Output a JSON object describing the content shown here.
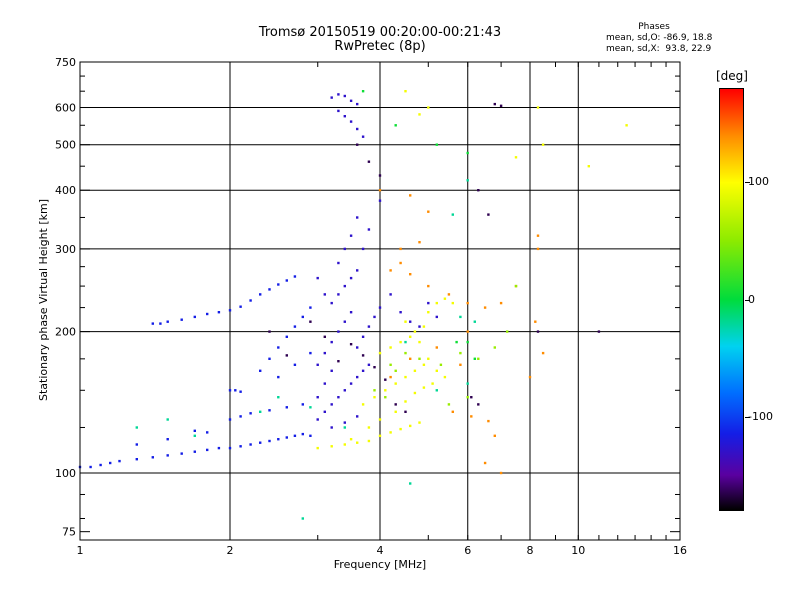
{
  "chart_data": {
    "type": "scatter",
    "title": "Tromsø 20150519 00:20:00-00:21:43",
    "subtitle": "RwPretec (8p)",
    "xlabel": "Frequency [MHz]",
    "ylabel": "Stationary phase Virtual Height [km]",
    "xscale": "log",
    "yscale": "log",
    "xlim": [
      1,
      16
    ],
    "ylim": [
      72,
      750
    ],
    "xticks": [
      {
        "value": 1,
        "label": "1"
      },
      {
        "value": 2,
        "label": "2"
      },
      {
        "value": 4,
        "label": "4"
      },
      {
        "value": 6,
        "label": "6"
      },
      {
        "value": 8,
        "label": "8"
      },
      {
        "value": 10,
        "label": "10"
      },
      {
        "value": 16,
        "label": "16"
      }
    ],
    "yticks": [
      {
        "value": 75,
        "label": "75"
      },
      {
        "value": 100,
        "label": "100"
      },
      {
        "value": 200,
        "label": "200"
      },
      {
        "value": 300,
        "label": "300"
      },
      {
        "value": 400,
        "label": "400"
      },
      {
        "value": 500,
        "label": "500"
      },
      {
        "value": 600,
        "label": "600"
      },
      {
        "value": 750,
        "label": "750"
      }
    ],
    "grid": true,
    "stats": {
      "heading": "Phases",
      "o_mode": "mean, sd,O: -86.9, 18.8",
      "x_mode": "mean, sd,X:  93.8, 22.9"
    },
    "colorbar": {
      "label": "[deg]",
      "range": [
        -180,
        180
      ],
      "ticks": [
        {
          "value": 100,
          "label": "100"
        },
        {
          "value": 0,
          "label": "0"
        },
        {
          "value": -100,
          "label": "-100"
        }
      ]
    },
    "series": [
      {
        "mode": "O",
        "phase_deg": -115,
        "points": [
          [
            1.0,
            103
          ],
          [
            1.05,
            103
          ],
          [
            1.1,
            104
          ],
          [
            1.15,
            105
          ],
          [
            1.2,
            106
          ],
          [
            1.3,
            107
          ],
          [
            1.4,
            108
          ],
          [
            1.5,
            109
          ],
          [
            1.6,
            110
          ],
          [
            1.7,
            111
          ],
          [
            1.8,
            112
          ],
          [
            1.9,
            113
          ],
          [
            2.0,
            113
          ],
          [
            2.1,
            114
          ],
          [
            2.2,
            115
          ],
          [
            2.3,
            116
          ],
          [
            2.4,
            117
          ],
          [
            2.5,
            118
          ],
          [
            2.6,
            119
          ],
          [
            2.7,
            120
          ],
          [
            2.8,
            121
          ],
          [
            2.9,
            120
          ],
          [
            1.4,
            208
          ],
          [
            1.45,
            208
          ],
          [
            1.5,
            210
          ],
          [
            1.6,
            212
          ],
          [
            1.7,
            215
          ],
          [
            1.8,
            218
          ],
          [
            1.9,
            220
          ],
          [
            2.0,
            222
          ],
          [
            2.1,
            226
          ],
          [
            2.2,
            233
          ],
          [
            2.3,
            240
          ],
          [
            2.4,
            246
          ],
          [
            2.5,
            252
          ],
          [
            2.6,
            257
          ],
          [
            2.7,
            262
          ],
          [
            2.0,
            150
          ],
          [
            2.05,
            150
          ],
          [
            2.1,
            149
          ],
          [
            2.0,
            130
          ],
          [
            2.1,
            132
          ],
          [
            2.2,
            134
          ],
          [
            2.4,
            136
          ],
          [
            2.6,
            138
          ],
          [
            2.8,
            140
          ],
          [
            2.3,
            165
          ],
          [
            2.4,
            175
          ],
          [
            2.5,
            185
          ],
          [
            2.6,
            195
          ],
          [
            2.7,
            205
          ],
          [
            2.5,
            160
          ],
          [
            2.7,
            170
          ],
          [
            2.9,
            180
          ],
          [
            2.8,
            215
          ],
          [
            2.9,
            225
          ],
          [
            1.7,
            123
          ],
          [
            1.8,
            122
          ],
          [
            1.3,
            115
          ],
          [
            1.5,
            118
          ]
        ]
      },
      {
        "mode": "O",
        "phase_deg": -128,
        "points": [
          [
            3.0,
            130
          ],
          [
            3.1,
            135
          ],
          [
            3.2,
            140
          ],
          [
            3.3,
            145
          ],
          [
            3.4,
            150
          ],
          [
            3.5,
            155
          ],
          [
            3.6,
            160
          ],
          [
            3.7,
            165
          ],
          [
            3.8,
            170
          ],
          [
            3.0,
            170
          ],
          [
            3.1,
            180
          ],
          [
            3.2,
            190
          ],
          [
            3.3,
            200
          ],
          [
            3.4,
            210
          ],
          [
            3.5,
            220
          ],
          [
            3.2,
            230
          ],
          [
            3.3,
            240
          ],
          [
            3.4,
            250
          ],
          [
            3.5,
            260
          ],
          [
            3.6,
            270
          ],
          [
            3.3,
            280
          ],
          [
            3.4,
            300
          ],
          [
            3.5,
            320
          ],
          [
            3.6,
            350
          ],
          [
            3.2,
            630
          ],
          [
            3.3,
            640
          ],
          [
            3.4,
            635
          ],
          [
            3.5,
            620
          ],
          [
            3.6,
            610
          ],
          [
            3.3,
            590
          ],
          [
            3.4,
            575
          ],
          [
            3.5,
            560
          ],
          [
            3.6,
            540
          ],
          [
            3.7,
            520
          ],
          [
            3.1,
            155
          ],
          [
            3.2,
            165
          ],
          [
            3.6,
            185
          ],
          [
            3.7,
            195
          ],
          [
            3.8,
            205
          ],
          [
            3.9,
            215
          ],
          [
            4.0,
            225
          ],
          [
            3.0,
            145
          ],
          [
            3.2,
            125
          ],
          [
            3.4,
            128
          ],
          [
            3.6,
            132
          ],
          [
            3.0,
            260
          ],
          [
            3.1,
            240
          ],
          [
            3.7,
            300
          ],
          [
            3.8,
            330
          ],
          [
            4.0,
            380
          ],
          [
            4.2,
            240
          ],
          [
            4.4,
            220
          ],
          [
            4.6,
            210
          ],
          [
            4.8,
            205
          ],
          [
            5.0,
            230
          ],
          [
            5.2,
            215
          ]
        ]
      },
      {
        "mode": "X",
        "phase_deg": 95,
        "points": [
          [
            3.0,
            113
          ],
          [
            3.2,
            114
          ],
          [
            3.4,
            115
          ],
          [
            3.6,
            116
          ],
          [
            3.8,
            117
          ],
          [
            4.0,
            120
          ],
          [
            4.2,
            122
          ],
          [
            4.4,
            124
          ],
          [
            4.6,
            126
          ],
          [
            4.8,
            128
          ],
          [
            3.7,
            140
          ],
          [
            3.9,
            145
          ],
          [
            4.1,
            150
          ],
          [
            4.3,
            155
          ],
          [
            4.5,
            160
          ],
          [
            4.7,
            165
          ],
          [
            4.9,
            170
          ],
          [
            4.0,
            180
          ],
          [
            4.2,
            185
          ],
          [
            4.4,
            190
          ],
          [
            4.6,
            195
          ],
          [
            4.8,
            190
          ],
          [
            5.0,
            175
          ],
          [
            5.2,
            165
          ],
          [
            5.4,
            160
          ],
          [
            5.0,
            220
          ],
          [
            5.2,
            230
          ],
          [
            5.4,
            235
          ],
          [
            5.6,
            230
          ],
          [
            4.5,
            210
          ],
          [
            4.7,
            200
          ],
          [
            4.9,
            205
          ],
          [
            4.3,
            135
          ],
          [
            4.5,
            142
          ],
          [
            4.7,
            148
          ],
          [
            4.9,
            152
          ],
          [
            5.1,
            155
          ],
          [
            3.8,
            125
          ],
          [
            4.0,
            130
          ],
          [
            3.5,
            118
          ],
          [
            8.3,
            600
          ],
          [
            8.5,
            500
          ],
          [
            7.5,
            470
          ],
          [
            10.5,
            450
          ],
          [
            12.5,
            550
          ],
          [
            4.5,
            650
          ],
          [
            5.0,
            600
          ],
          [
            4.8,
            580
          ]
        ]
      },
      {
        "mode": "X",
        "phase_deg": 140,
        "points": [
          [
            4.2,
            270
          ],
          [
            4.4,
            280
          ],
          [
            4.6,
            265
          ],
          [
            5.0,
            250
          ],
          [
            5.5,
            240
          ],
          [
            6.0,
            230
          ],
          [
            6.5,
            225
          ],
          [
            7.0,
            230
          ],
          [
            7.5,
            250
          ],
          [
            8.2,
            210
          ],
          [
            8.3,
            320
          ],
          [
            8.3,
            300
          ],
          [
            5.6,
            135
          ],
          [
            6.1,
            132
          ],
          [
            6.6,
            129
          ],
          [
            4.0,
            400
          ],
          [
            4.6,
            390
          ],
          [
            5.0,
            360
          ],
          [
            4.4,
            300
          ],
          [
            4.8,
            310
          ],
          [
            4.2,
            160
          ],
          [
            4.6,
            175
          ],
          [
            5.2,
            185
          ],
          [
            6.0,
            200
          ],
          [
            6.5,
            105
          ],
          [
            7.0,
            100
          ],
          [
            6.8,
            120
          ],
          [
            5.8,
            170
          ],
          [
            8.0,
            160
          ],
          [
            8.5,
            180
          ]
        ]
      },
      {
        "mode": "X",
        "phase_deg": 55,
        "points": [
          [
            4.2,
            170
          ],
          [
            4.5,
            180
          ],
          [
            4.8,
            175
          ],
          [
            5.3,
            170
          ],
          [
            5.8,
            180
          ],
          [
            6.3,
            175
          ],
          [
            6.8,
            185
          ],
          [
            7.5,
            250
          ],
          [
            5.5,
            140
          ],
          [
            6.0,
            145
          ],
          [
            3.9,
            150
          ],
          [
            4.1,
            145
          ],
          [
            4.3,
            165
          ],
          [
            7.2,
            200
          ]
        ]
      },
      {
        "mode": "X",
        "phase_deg": 5,
        "points": [
          [
            3.7,
            650
          ],
          [
            4.3,
            550
          ],
          [
            5.2,
            500
          ],
          [
            6.0,
            480
          ],
          [
            5.7,
            190
          ],
          [
            6.0,
            190
          ],
          [
            6.2,
            175
          ]
        ]
      },
      {
        "mode": "O",
        "phase_deg": -20,
        "points": [
          [
            1.3,
            125
          ],
          [
            1.5,
            130
          ],
          [
            1.7,
            120
          ],
          [
            2.3,
            135
          ],
          [
            2.5,
            145
          ],
          [
            2.9,
            138
          ],
          [
            3.4,
            125
          ],
          [
            4.5,
            190
          ],
          [
            5.2,
            150
          ],
          [
            6.0,
            155
          ],
          [
            5.8,
            215
          ],
          [
            6.2,
            210
          ],
          [
            5.6,
            355
          ],
          [
            6.0,
            420
          ],
          [
            4.6,
            95
          ],
          [
            2.8,
            80
          ]
        ]
      },
      {
        "mode": "O",
        "phase_deg": -165,
        "points": [
          [
            2.4,
            200
          ],
          [
            2.6,
            178
          ],
          [
            2.9,
            210
          ],
          [
            3.1,
            195
          ],
          [
            3.3,
            173
          ],
          [
            3.5,
            188
          ],
          [
            3.7,
            178
          ],
          [
            3.9,
            168
          ],
          [
            4.1,
            158
          ],
          [
            3.6,
            500
          ],
          [
            3.8,
            460
          ],
          [
            4.0,
            430
          ],
          [
            6.3,
            400
          ],
          [
            6.6,
            355
          ],
          [
            8.3,
            200
          ],
          [
            11.0,
            200
          ],
          [
            6.8,
            610
          ],
          [
            7.0,
            605
          ],
          [
            6.1,
            145
          ],
          [
            6.3,
            140
          ],
          [
            4.3,
            140
          ],
          [
            4.5,
            135
          ]
        ]
      }
    ]
  }
}
